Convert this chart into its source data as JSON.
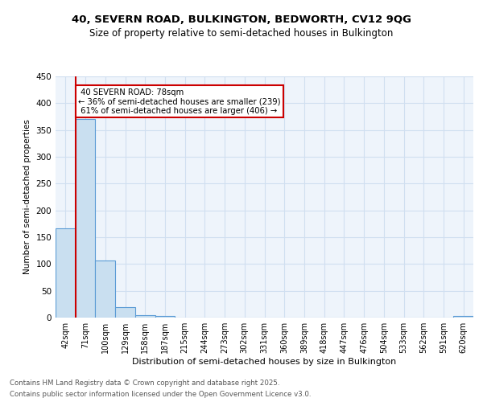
{
  "title": "40, SEVERN ROAD, BULKINGTON, BEDWORTH, CV12 9QG",
  "subtitle": "Size of property relative to semi-detached houses in Bulkington",
  "xlabel": "Distribution of semi-detached houses by size in Bulkington",
  "ylabel": "Number of semi-detached properties",
  "footer1": "Contains HM Land Registry data © Crown copyright and database right 2025.",
  "footer2": "Contains public sector information licensed under the Open Government Licence v3.0.",
  "bin_labels": [
    "42sqm",
    "71sqm",
    "100sqm",
    "129sqm",
    "158sqm",
    "187sqm",
    "215sqm",
    "244sqm",
    "273sqm",
    "302sqm",
    "331sqm",
    "360sqm",
    "389sqm",
    "418sqm",
    "447sqm",
    "476sqm",
    "504sqm",
    "533sqm",
    "562sqm",
    "591sqm",
    "620sqm"
  ],
  "bar_heights": [
    167,
    370,
    106,
    20,
    5,
    3,
    0,
    0,
    0,
    0,
    0,
    0,
    0,
    0,
    0,
    0,
    0,
    0,
    0,
    0,
    3
  ],
  "bar_color": "#c9dff0",
  "bar_edge_color": "#5b9bd5",
  "property_label": "40 SEVERN ROAD: 78sqm",
  "pct_smaller": 36,
  "count_smaller": 239,
  "pct_larger": 61,
  "count_larger": 406,
  "annotation_color": "#cc0000",
  "vline_color": "#cc0000",
  "vline_x": 0.5,
  "ylim": [
    0,
    450
  ],
  "yticks": [
    0,
    50,
    100,
    150,
    200,
    250,
    300,
    350,
    400,
    450
  ],
  "grid_color": "#d0dff0",
  "bg_color": "#eef4fb",
  "fig_bg": "#ffffff"
}
